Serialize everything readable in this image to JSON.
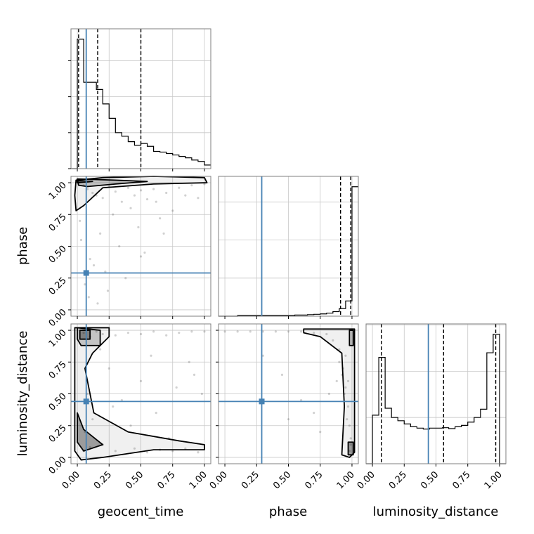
{
  "chart_data": {
    "type": "corner",
    "parameters": [
      "geocent_time",
      "phase",
      "luminosity_distance"
    ],
    "axis_labels": {
      "x": [
        "geocent_time",
        "phase",
        "luminosity_distance"
      ],
      "y": [
        "phase",
        "luminosity_distance"
      ]
    },
    "tick_labels": [
      "0.00",
      "0.25",
      "0.50",
      "0.75",
      "1.00"
    ],
    "tick_values": [
      0.0,
      0.25,
      0.5,
      0.75,
      1.0
    ],
    "xlim": [
      -0.05,
      1.05
    ],
    "grid": true,
    "truths": {
      "geocent_time": 0.07,
      "phase": 0.29,
      "luminosity_distance": 0.44
    },
    "quantiles": {
      "geocent_time": [
        0.01,
        0.16,
        0.5
      ],
      "phase": [
        0.91,
        0.99
      ],
      "luminosity_distance": [
        0.07,
        0.56,
        0.97
      ]
    },
    "histograms": {
      "bin_edges": [
        -0.05,
        0.0,
        0.05,
        0.1,
        0.15,
        0.2,
        0.25,
        0.3,
        0.35,
        0.4,
        0.45,
        0.5,
        0.55,
        0.6,
        0.65,
        0.7,
        0.75,
        0.8,
        0.85,
        0.9,
        0.95,
        1.0,
        1.05
      ],
      "geocent_time": [
        0,
        3.6,
        2.4,
        2.4,
        2.2,
        1.8,
        1.4,
        1.0,
        0.9,
        0.75,
        0.65,
        0.7,
        0.62,
        0.48,
        0.46,
        0.42,
        0.38,
        0.34,
        0.3,
        0.24,
        0.2,
        0.1
      ],
      "phase": [
        0,
        0,
        0,
        0.02,
        0.02,
        0.02,
        0.02,
        0.02,
        0.02,
        0.02,
        0.02,
        0.02,
        0.03,
        0.03,
        0.04,
        0.05,
        0.06,
        0.08,
        0.12,
        0.2,
        0.4,
        3.4
      ],
      "luminosity_distance": [
        0,
        1.05,
        2.3,
        1.2,
        1.0,
        0.93,
        0.86,
        0.8,
        0.77,
        0.75,
        0.77,
        0.77,
        0.78,
        0.76,
        0.8,
        0.83,
        0.9,
        1.0,
        1.18,
        2.4,
        2.8,
        0
      ]
    },
    "scatter_2d": {
      "phase_vs_geocent_time": {
        "x": [
          0.05,
          0.08,
          0.12,
          0.15,
          0.2,
          0.25,
          0.3,
          0.35,
          0.4,
          0.45,
          0.5,
          0.55,
          0.6,
          0.7,
          0.8,
          0.9,
          1.0,
          0.02,
          0.03,
          0.1,
          0.18,
          0.22,
          0.28,
          0.33,
          0.42,
          0.48,
          0.53,
          0.62,
          0.68,
          0.75,
          0.85,
          0.95,
          0.06,
          0.09,
          0.13,
          0.16,
          0.24,
          0.38,
          0.5,
          0.65
        ],
        "y": [
          0.98,
          0.95,
          0.92,
          0.9,
          0.88,
          0.97,
          0.93,
          0.85,
          0.96,
          0.9,
          0.94,
          0.87,
          0.95,
          0.92,
          0.96,
          0.98,
          0.99,
          0.7,
          0.55,
          0.4,
          0.6,
          0.3,
          0.75,
          0.5,
          0.8,
          0.65,
          0.45,
          0.85,
          0.6,
          0.78,
          0.9,
          0.88,
          0.2,
          0.1,
          0.35,
          0.05,
          0.15,
          0.25,
          0.42,
          0.72
        ]
      },
      "luminosity_distance_vs_geocent_time": {
        "x": [
          0.05,
          0.1,
          0.15,
          0.2,
          0.3,
          0.4,
          0.5,
          0.6,
          0.7,
          0.8,
          0.9,
          1.0,
          0.05,
          0.1,
          0.2,
          0.3,
          0.45,
          0.55,
          0.65,
          0.75,
          0.85,
          0.95,
          0.08,
          0.12,
          0.25,
          0.35,
          0.5,
          0.62,
          0.78,
          0.92,
          0.06,
          0.18,
          0.28,
          0.42,
          0.58,
          0.72,
          0.88,
          0.98
        ],
        "y": [
          0.98,
          0.95,
          0.99,
          0.97,
          0.96,
          0.98,
          0.97,
          0.99,
          0.96,
          0.98,
          0.99,
          0.99,
          0.05,
          0.08,
          0.1,
          0.05,
          0.07,
          0.04,
          0.06,
          0.05,
          0.07,
          0.04,
          0.5,
          0.3,
          0.7,
          0.45,
          0.6,
          0.35,
          0.55,
          0.65,
          0.2,
          0.85,
          0.4,
          0.25,
          0.8,
          0.15,
          0.75,
          0.5
        ]
      },
      "luminosity_distance_vs_phase": {
        "x": [
          0.0,
          0.1,
          0.2,
          0.3,
          0.4,
          0.5,
          0.6,
          0.7,
          0.8,
          0.85,
          0.9,
          0.93,
          0.95,
          0.97,
          0.98,
          0.99,
          0.96,
          0.94,
          0.92,
          0.98,
          0.99,
          0.97,
          0.95,
          0.9,
          0.88,
          0.6,
          0.5,
          0.75,
          0.82,
          0.45,
          0.3,
          0.7
        ],
        "y": [
          0.99,
          0.99,
          0.99,
          0.99,
          0.99,
          0.99,
          0.99,
          0.98,
          0.97,
          0.92,
          0.85,
          0.7,
          0.55,
          0.4,
          0.25,
          0.1,
          0.3,
          0.5,
          0.65,
          0.05,
          0.15,
          0.6,
          0.8,
          0.75,
          0.6,
          0.45,
          0.3,
          0.2,
          0.5,
          0.65,
          0.8,
          0.35
        ]
      }
    },
    "contours": {
      "phase_vs_geocent_time": [
        [
          [
            -0.01,
            1.02
          ],
          [
            0.2,
            1.04
          ],
          [
            0.6,
            1.05
          ],
          [
            1.0,
            1.04
          ],
          [
            1.02,
            1.0
          ],
          [
            0.6,
            0.99
          ],
          [
            0.2,
            0.96
          ],
          [
            0.05,
            0.82
          ],
          [
            -0.01,
            0.78
          ],
          [
            -0.02,
            0.9
          ]
        ],
        [
          [
            0.0,
            1.03
          ],
          [
            0.3,
            1.02
          ],
          [
            0.55,
            1.01
          ],
          [
            0.3,
            0.99
          ],
          [
            0.08,
            0.97
          ],
          [
            0.01,
            0.98
          ]
        ],
        [
          [
            0.0,
            1.015
          ],
          [
            0.12,
            1.01
          ],
          [
            0.0,
            1.0
          ]
        ]
      ],
      "luminosity_distance_vs_geocent_time": [
        [
          [
            -0.02,
            1.02
          ],
          [
            0.25,
            1.02
          ],
          [
            0.25,
            0.95
          ],
          [
            0.12,
            0.82
          ],
          [
            0.06,
            0.7
          ],
          [
            0.1,
            0.5
          ],
          [
            0.13,
            0.35
          ],
          [
            0.4,
            0.2
          ],
          [
            0.8,
            0.13
          ],
          [
            1.0,
            0.1
          ],
          [
            1.0,
            0.06
          ],
          [
            0.6,
            0.06
          ],
          [
            0.2,
            0.0
          ],
          [
            0.03,
            -0.02
          ],
          [
            -0.02,
            0.05
          ],
          [
            -0.02,
            0.5
          ]
        ],
        [
          [
            0.0,
            1.02
          ],
          [
            0.18,
            1.0
          ],
          [
            0.18,
            0.88
          ],
          [
            0.03,
            0.88
          ],
          [
            0.0,
            0.93
          ]
        ],
        [
          [
            0.02,
            1.0
          ],
          [
            0.1,
            1.0
          ],
          [
            0.1,
            0.93
          ],
          [
            0.02,
            0.93
          ]
        ],
        [
          [
            0.0,
            0.35
          ],
          [
            0.05,
            0.22
          ],
          [
            0.2,
            0.1
          ],
          [
            0.05,
            0.05
          ],
          [
            0.0,
            0.12
          ]
        ]
      ],
      "luminosity_distance_vs_phase": [
        [
          [
            0.62,
            1.01
          ],
          [
            1.02,
            1.01
          ],
          [
            1.02,
            0.04
          ],
          [
            0.98,
            0.0
          ],
          [
            0.92,
            0.02
          ],
          [
            0.94,
            0.4
          ],
          [
            0.92,
            0.82
          ],
          [
            0.75,
            0.95
          ],
          [
            0.62,
            0.98
          ]
        ],
        [
          [
            0.98,
            1.0
          ],
          [
            1.01,
            1.0
          ],
          [
            1.01,
            0.88
          ],
          [
            0.98,
            0.88
          ]
        ],
        [
          [
            0.97,
            0.12
          ],
          [
            1.01,
            0.12
          ],
          [
            1.01,
            0.02
          ],
          [
            0.97,
            0.02
          ]
        ]
      ]
    }
  }
}
